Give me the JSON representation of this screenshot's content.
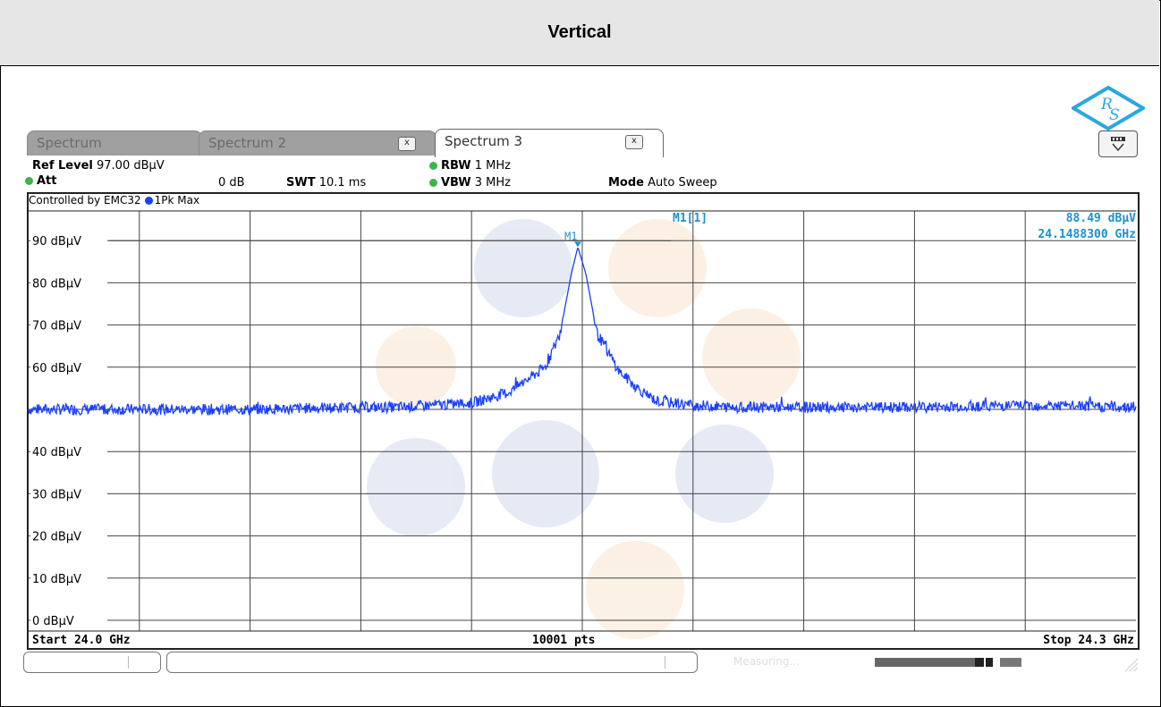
{
  "page": {
    "title": "Vertical"
  },
  "tabs": [
    {
      "label": "Spectrum",
      "active": false,
      "closable": false
    },
    {
      "label": "Spectrum 2",
      "active": false,
      "closable": true
    },
    {
      "label": "Spectrum 3",
      "active": true,
      "closable": true
    }
  ],
  "tab_close_label": "x",
  "params": {
    "ref_level_label": "Ref Level",
    "ref_level_value": "97.00 dBµV",
    "att_label": "Att",
    "att_value": "0 dB",
    "swt_label": "SWT",
    "swt_value": "10.1 ms",
    "rbw_label": "RBW",
    "rbw_value": "1 MHz",
    "vbw_label": "VBW",
    "vbw_value": "3 MHz",
    "mode_label": "Mode",
    "mode_value": "Auto Sweep"
  },
  "trace_header": {
    "controlled_by": "Controlled by EMC32",
    "trace_label": "1Pk Max"
  },
  "marker": {
    "label": "M1",
    "readout_label": "M1[1]",
    "level": "88.49 dBµV",
    "frequency": "24.1488300 GHz"
  },
  "footer": {
    "start": "Start 24.0 GHz",
    "points": "10001 pts",
    "stop": "Stop 24.3 GHz"
  },
  "status": {
    "measuring": "Measuring..."
  },
  "colors": {
    "trace": "#1a3fff",
    "marker": "#1e90d0",
    "grid": "#444444",
    "green_indicator": "#3db34a"
  },
  "chart_data": {
    "type": "line",
    "x_range_ghz": [
      24.0,
      24.3
    ],
    "y_range_dbuv": [
      0,
      97
    ],
    "y_ticks": [
      "90 dBµV",
      "80 dBµV",
      "70 dBµV",
      "60 dBµV",
      "40 dBµV",
      "30 dBµV",
      "20 dBµV",
      "10 dBµV",
      "0 dBµV"
    ],
    "y_tick_values": [
      90,
      80,
      70,
      60,
      40,
      30,
      20,
      10,
      0
    ],
    "grid": true,
    "series": [
      {
        "x": [
          24.0,
          24.03,
          24.06,
          24.09,
          24.1,
          24.11,
          24.12,
          24.13,
          24.14,
          24.144,
          24.147,
          24.1488,
          24.151,
          24.154,
          24.16,
          24.165,
          24.17,
          24.18,
          24.19,
          24.21,
          24.24,
          24.27,
          24.3
        ],
        "y": [
          50,
          50,
          50,
          50.5,
          50.5,
          51,
          51.5,
          54,
          60,
          68,
          82,
          88.49,
          82,
          68,
          59,
          55,
          52,
          51,
          50.5,
          50.5,
          50.5,
          51,
          50.5
        ]
      }
    ]
  }
}
